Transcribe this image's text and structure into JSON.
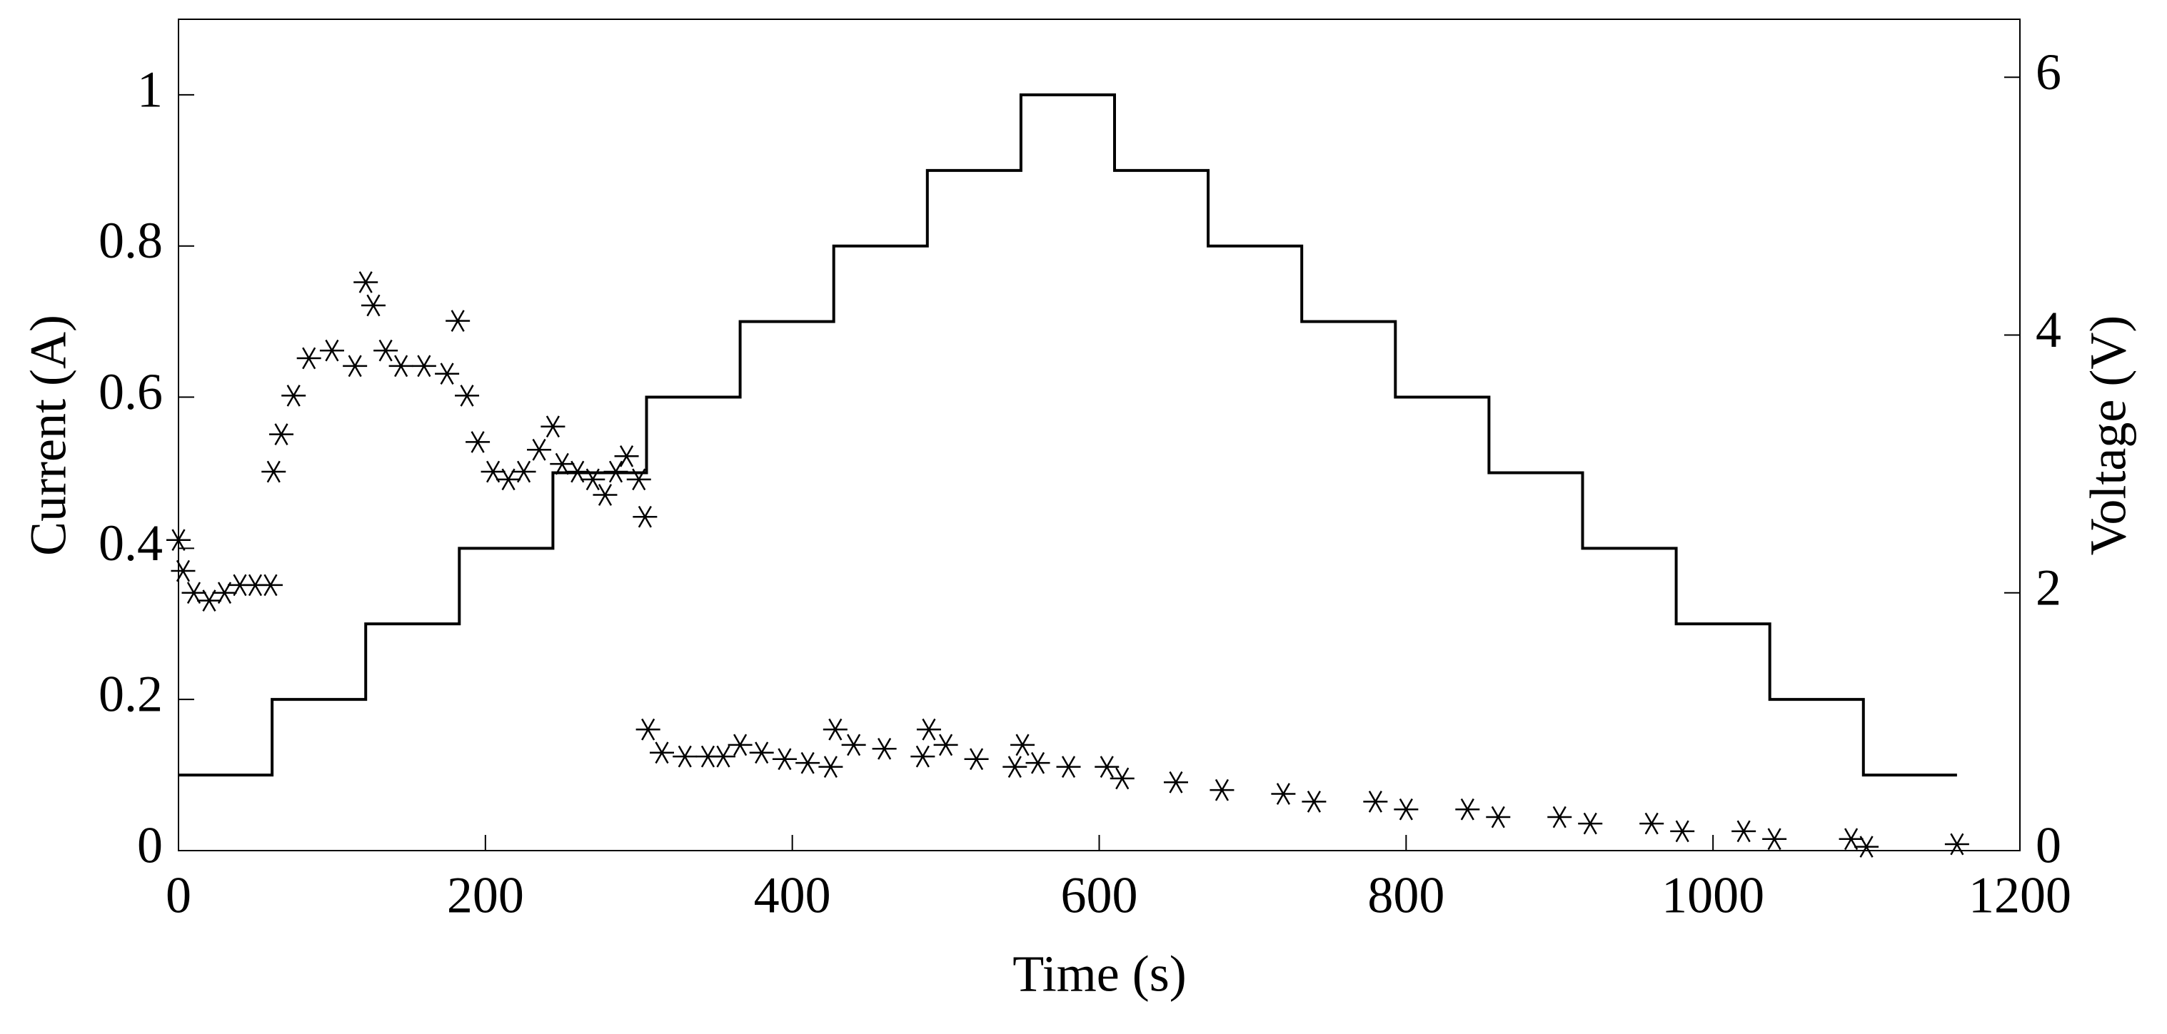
{
  "chart_data": {
    "type": "line",
    "xlabel": "Time (s)",
    "ylabel": "Current (A)",
    "y2label": "Voltage (V)",
    "xlim": [
      0,
      1200
    ],
    "xticks": [
      0,
      200,
      400,
      600,
      800,
      1000,
      1200
    ],
    "ylim": [
      0,
      1.1
    ],
    "yticks": [
      0,
      0.2,
      0.4,
      0.6,
      0.8,
      1
    ],
    "y2lim": [
      0,
      6.45
    ],
    "y2ticks": [
      0,
      2,
      4,
      6
    ],
    "series": [
      {
        "name": "Current",
        "color": "#000000",
        "style": "line",
        "x": [
          0,
          61,
          61,
          122,
          122,
          183,
          183,
          244,
          244,
          305,
          305,
          366,
          366,
          427,
          427,
          488,
          488,
          549,
          549,
          610,
          610,
          671,
          671,
          732,
          732,
          793,
          793,
          854,
          854,
          915,
          915,
          976,
          976,
          1037,
          1037,
          1098,
          1098,
          1159
        ],
        "values": [
          0.1,
          0.1,
          0.2,
          0.2,
          0.3,
          0.3,
          0.4,
          0.4,
          0.5,
          0.5,
          0.6,
          0.6,
          0.7,
          0.7,
          0.8,
          0.8,
          0.9,
          0.9,
          1,
          1,
          0.9,
          0.9,
          0.8,
          0.8,
          0.7,
          0.7,
          0.6,
          0.6,
          0.5,
          0.5,
          0.4,
          0.4,
          0.3,
          0.3,
          0.2,
          0.2,
          0.1,
          0.1
        ]
      },
      {
        "name": "Voltage",
        "color": "#000000",
        "style": "marker",
        "axis": "y2",
        "x": [
          0,
          3,
          10,
          20,
          30,
          40,
          50,
          60,
          62,
          67,
          75,
          85,
          100,
          115,
          122,
          127,
          135,
          145,
          160,
          175,
          182,
          188,
          195,
          205,
          215,
          225,
          235,
          244,
          250,
          260,
          270,
          278,
          285,
          292,
          300,
          304,
          306,
          315,
          330,
          345,
          355,
          366,
          380,
          395,
          410,
          425,
          428,
          440,
          460,
          485,
          489,
          500,
          520,
          545,
          550,
          560,
          580,
          605,
          615,
          650,
          680,
          720,
          740,
          780,
          800,
          840,
          860,
          900,
          920,
          960,
          980,
          1020,
          1040,
          1090,
          1100,
          1159
        ],
        "values": [
          2.41,
          2.17,
          2.0,
          1.94,
          2.0,
          2.06,
          2.06,
          2.06,
          2.94,
          3.23,
          3.53,
          3.82,
          3.88,
          3.76,
          4.41,
          4.23,
          3.88,
          3.76,
          3.76,
          3.7,
          4.11,
          3.53,
          3.17,
          2.94,
          2.88,
          2.94,
          3.11,
          3.29,
          3.0,
          2.94,
          2.88,
          2.76,
          2.94,
          3.06,
          2.88,
          2.59,
          0.94,
          0.76,
          0.73,
          0.73,
          0.73,
          0.82,
          0.76,
          0.71,
          0.68,
          0.65,
          0.94,
          0.82,
          0.79,
          0.73,
          0.94,
          0.82,
          0.71,
          0.65,
          0.82,
          0.68,
          0.65,
          0.65,
          0.56,
          0.53,
          0.47,
          0.44,
          0.38,
          0.38,
          0.32,
          0.32,
          0.26,
          0.26,
          0.21,
          0.21,
          0.15,
          0.15,
          0.09,
          0.09,
          0.03,
          0.05
        ]
      }
    ]
  }
}
